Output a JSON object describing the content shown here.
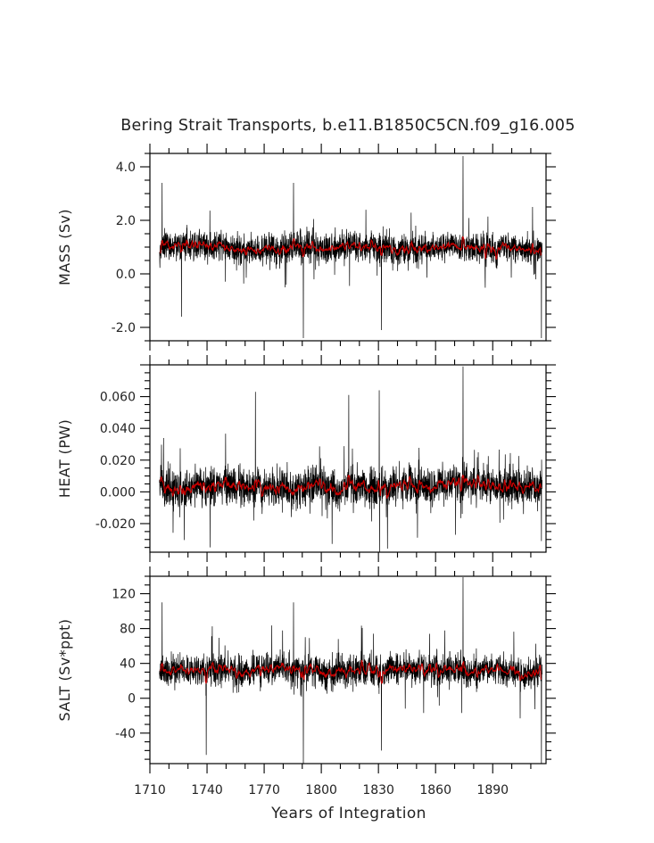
{
  "title": "Bering Strait Transports, b.e11.B1850C5CN.f09_g16.005",
  "chart_data": [
    {
      "type": "line",
      "ylabel": "MASS (Sv)",
      "ylim": [
        -2.5,
        4.5
      ],
      "yticks": [
        "-2.0",
        "0.0",
        "2.0",
        "4.0"
      ],
      "ytick_values": [
        -2.0,
        0.0,
        2.0,
        4.0
      ],
      "xlim": [
        1710,
        1918
      ],
      "mean": 1.0,
      "noise_sd": 0.55,
      "running_mean_spread": 0.12,
      "spikes": [
        [
          1716,
          3.4
        ],
        [
          1785,
          3.4
        ],
        [
          1874,
          4.4
        ],
        [
          1790,
          -2.4
        ],
        [
          1915,
          -2.4
        ],
        [
          1726,
          -1.6
        ],
        [
          1831,
          -2.1
        ]
      ],
      "series": [
        {
          "kind": "annual",
          "color": "#000000"
        },
        {
          "kind": "running-mean",
          "color": "#cc0000"
        }
      ]
    },
    {
      "type": "line",
      "ylabel": "HEAT (PW)",
      "ylim": [
        -0.038,
        0.08
      ],
      "yticks": [
        "-0.020",
        "0.000",
        "0.020",
        "0.040",
        "0.060"
      ],
      "ytick_values": [
        -0.02,
        0.0,
        0.02,
        0.04,
        0.06
      ],
      "xlim": [
        1710,
        1918
      ],
      "mean": 0.003,
      "noise_sd": 0.012,
      "running_mean_spread": 0.0025,
      "spikes": [
        [
          1874,
          0.079
        ],
        [
          1765,
          0.063
        ],
        [
          1830,
          0.064
        ],
        [
          1814,
          0.061
        ],
        [
          1741,
          -0.035
        ],
        [
          1830,
          -0.04
        ],
        [
          1915,
          -0.031
        ]
      ],
      "series": [
        {
          "kind": "annual",
          "color": "#000000"
        },
        {
          "kind": "running-mean",
          "color": "#cc0000"
        }
      ]
    },
    {
      "type": "line",
      "ylabel": "SALT (Sv*ppt)",
      "ylim": [
        -75,
        140
      ],
      "yticks": [
        "-40",
        "0",
        "40",
        "80",
        "120"
      ],
      "ytick_values": [
        -40,
        0,
        40,
        80,
        120
      ],
      "xlim": [
        1710,
        1918
      ],
      "mean": 32,
      "noise_sd": 18,
      "running_mean_spread": 4,
      "spikes": [
        [
          1716,
          110
        ],
        [
          1785,
          110
        ],
        [
          1874,
          139
        ],
        [
          1790,
          -75
        ],
        [
          1915,
          -75
        ],
        [
          1739,
          -65
        ],
        [
          1831,
          -60
        ]
      ],
      "series": [
        {
          "kind": "annual",
          "color": "#000000"
        },
        {
          "kind": "running-mean",
          "color": "#cc0000"
        }
      ]
    }
  ],
  "x_axis": {
    "label": "Years of Integration",
    "ticks": [
      "1710",
      "1740",
      "1770",
      "1800",
      "1830",
      "1860",
      "1890"
    ],
    "tick_values": [
      1710,
      1740,
      1770,
      1800,
      1830,
      1860,
      1890
    ]
  }
}
